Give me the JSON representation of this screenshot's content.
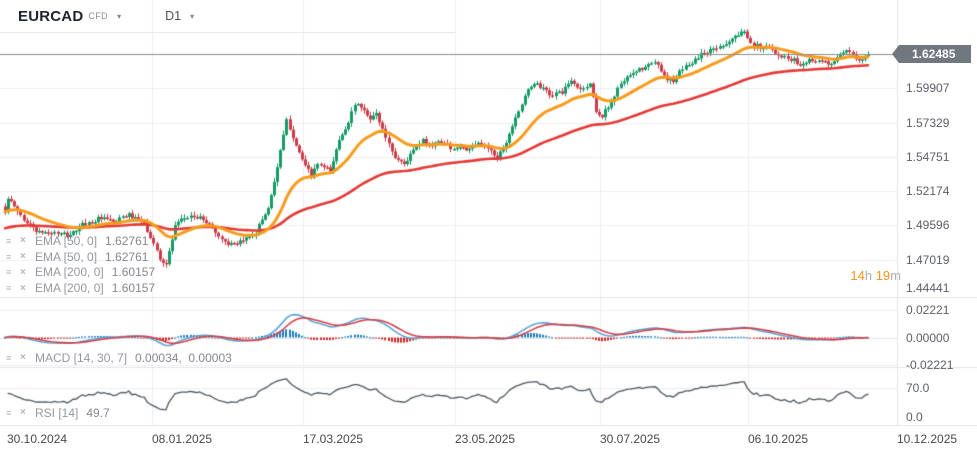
{
  "header": {
    "symbol": "EURCAD",
    "market_type": "CFD",
    "timeframe": "D1",
    "caret": "▾"
  },
  "legend": {
    "settings_icon": "≡",
    "close_icon": "×",
    "overlays": [
      {
        "label": "EMA [50, 0]",
        "value": "1.62761"
      },
      {
        "label": "EMA [50, 0]",
        "value": "1.62761"
      },
      {
        "label": "EMA [200, 0]",
        "value": "1.60157"
      },
      {
        "label": "EMA [200, 0]",
        "value": "1.60157"
      }
    ],
    "macd": {
      "label": "MACD [14, 30, 7]",
      "values": "0.00034,  0.00003"
    },
    "rsi": {
      "label": "RSI [14]",
      "value": "49.7"
    }
  },
  "price_axis": {
    "current": "1.62485",
    "ticks": [
      "1.59907",
      "1.57329",
      "1.54751",
      "1.52174",
      "1.49596",
      "1.47019",
      "1.44441"
    ]
  },
  "macd_axis": {
    "ticks": [
      "0.02221",
      "0.00000",
      "-0.02221"
    ]
  },
  "rsi_axis": {
    "ticks": [
      "70.0",
      "0.0"
    ]
  },
  "time_axis": {
    "ticks": [
      "30.10.2024",
      "08.01.2025",
      "17.03.2025",
      "23.05.2025",
      "30.07.2025",
      "06.10.2025",
      "10.12.2025"
    ]
  },
  "countdown": {
    "hours": "14",
    "hours_unit": "h",
    "minutes": "19",
    "minutes_unit": "m"
  },
  "chart_data": {
    "type": "candlestick",
    "title": "EURCAD CFD D1",
    "x_range": [
      "30.10.2024",
      "10.12.2025"
    ],
    "y_range": [
      1.4444,
      1.6449
    ],
    "current_price": 1.62485,
    "num_candles": 280,
    "price_path": [
      [
        0,
        1.509
      ],
      [
        1,
        1.5155
      ],
      [
        6,
        1.5005
      ],
      [
        11,
        1.4905
      ],
      [
        16,
        1.4905
      ],
      [
        20,
        1.4875
      ],
      [
        25,
        1.4955
      ],
      [
        30,
        1.5015
      ],
      [
        35,
        1.4975
      ],
      [
        40,
        1.5035
      ],
      [
        45,
        1.4965
      ],
      [
        50,
        1.4715
      ],
      [
        52,
        1.4675
      ],
      [
        55,
        1.4945
      ],
      [
        60,
        1.5035
      ],
      [
        65,
        1.4995
      ],
      [
        70,
        1.4855
      ],
      [
        75,
        1.4795
      ],
      [
        79,
        1.4875
      ],
      [
        81,
        1.4925
      ],
      [
        85,
        1.5095
      ],
      [
        88,
        1.5405
      ],
      [
        91,
        1.5735
      ],
      [
        94,
        1.5585
      ],
      [
        97,
        1.5395
      ],
      [
        99,
        1.5325
      ],
      [
        101,
        1.5415
      ],
      [
        105,
        1.5355
      ],
      [
        108,
        1.5605
      ],
      [
        112,
        1.5815
      ],
      [
        114,
        1.5875
      ],
      [
        118,
        1.5745
      ],
      [
        120,
        1.5795
      ],
      [
        123,
        1.5625
      ],
      [
        126,
        1.5475
      ],
      [
        129,
        1.5425
      ],
      [
        132,
        1.5525
      ],
      [
        135,
        1.5585
      ],
      [
        138,
        1.5565
      ],
      [
        141,
        1.5595
      ],
      [
        144,
        1.5545
      ],
      [
        147,
        1.5565
      ],
      [
        150,
        1.5525
      ],
      [
        153,
        1.5565
      ],
      [
        157,
        1.5535
      ],
      [
        159,
        1.5475
      ],
      [
        162,
        1.5595
      ],
      [
        165,
        1.5795
      ],
      [
        168,
        1.5925
      ],
      [
        171,
        1.6035
      ],
      [
        173,
        1.6005
      ],
      [
        176,
        1.5935
      ],
      [
        180,
        1.5965
      ],
      [
        183,
        1.6035
      ],
      [
        186,
        1.5985
      ],
      [
        189,
        1.6025
      ],
      [
        191,
        1.5825
      ],
      [
        193,
        1.5785
      ],
      [
        196,
        1.5895
      ],
      [
        199,
        1.6035
      ],
      [
        203,
        1.6085
      ],
      [
        207,
        1.6145
      ],
      [
        210,
        1.6175
      ],
      [
        214,
        1.6075
      ],
      [
        216,
        1.6035
      ],
      [
        219,
        1.613
      ],
      [
        223,
        1.6215
      ],
      [
        226,
        1.6265
      ],
      [
        230,
        1.6295
      ],
      [
        233,
        1.6345
      ],
      [
        237,
        1.6395
      ],
      [
        239,
        1.6415
      ],
      [
        242,
        1.6335
      ],
      [
        245,
        1.6285
      ],
      [
        248,
        1.6295
      ],
      [
        251,
        1.6235
      ],
      [
        255,
        1.6215
      ],
      [
        257,
        1.6165
      ],
      [
        260,
        1.6225
      ],
      [
        262,
        1.6185
      ],
      [
        266,
        1.6165
      ],
      [
        269,
        1.6215
      ],
      [
        272,
        1.6245
      ],
      [
        275,
        1.6225
      ],
      [
        279,
        1.6249
      ]
    ],
    "indicators": [
      {
        "name": "EMA",
        "params": [
          50,
          0
        ],
        "value": 1.62761,
        "pane": "price"
      },
      {
        "name": "EMA",
        "params": [
          200,
          0
        ],
        "value": 1.60157,
        "pane": "price"
      },
      {
        "name": "MACD",
        "params": [
          14,
          30,
          7
        ],
        "values": [
          0.00034,
          3e-05
        ],
        "pane": "macd",
        "ylim": [
          -0.02221,
          0.02221
        ]
      },
      {
        "name": "RSI",
        "params": [
          14
        ],
        "value": 49.7,
        "pane": "rsi",
        "ticks": [
          70.0,
          0.0
        ]
      }
    ],
    "colors": {
      "up": "#169a66",
      "down": "#cd3c49",
      "ema_fast": "#f89b1c",
      "ema_slow": "#e53935",
      "macd_line": "#5ea4d8",
      "macd_signal": "#d64045",
      "hist_pos": "#1c7dc0",
      "hist_neg": "#cd2b2b",
      "rsi": "#4d565e",
      "grid": "#eceef1",
      "separator": "#e2e4e8",
      "price_line": "#888c90",
      "badge_bg": "#70777e",
      "accent_orange": "#f7941e"
    }
  }
}
